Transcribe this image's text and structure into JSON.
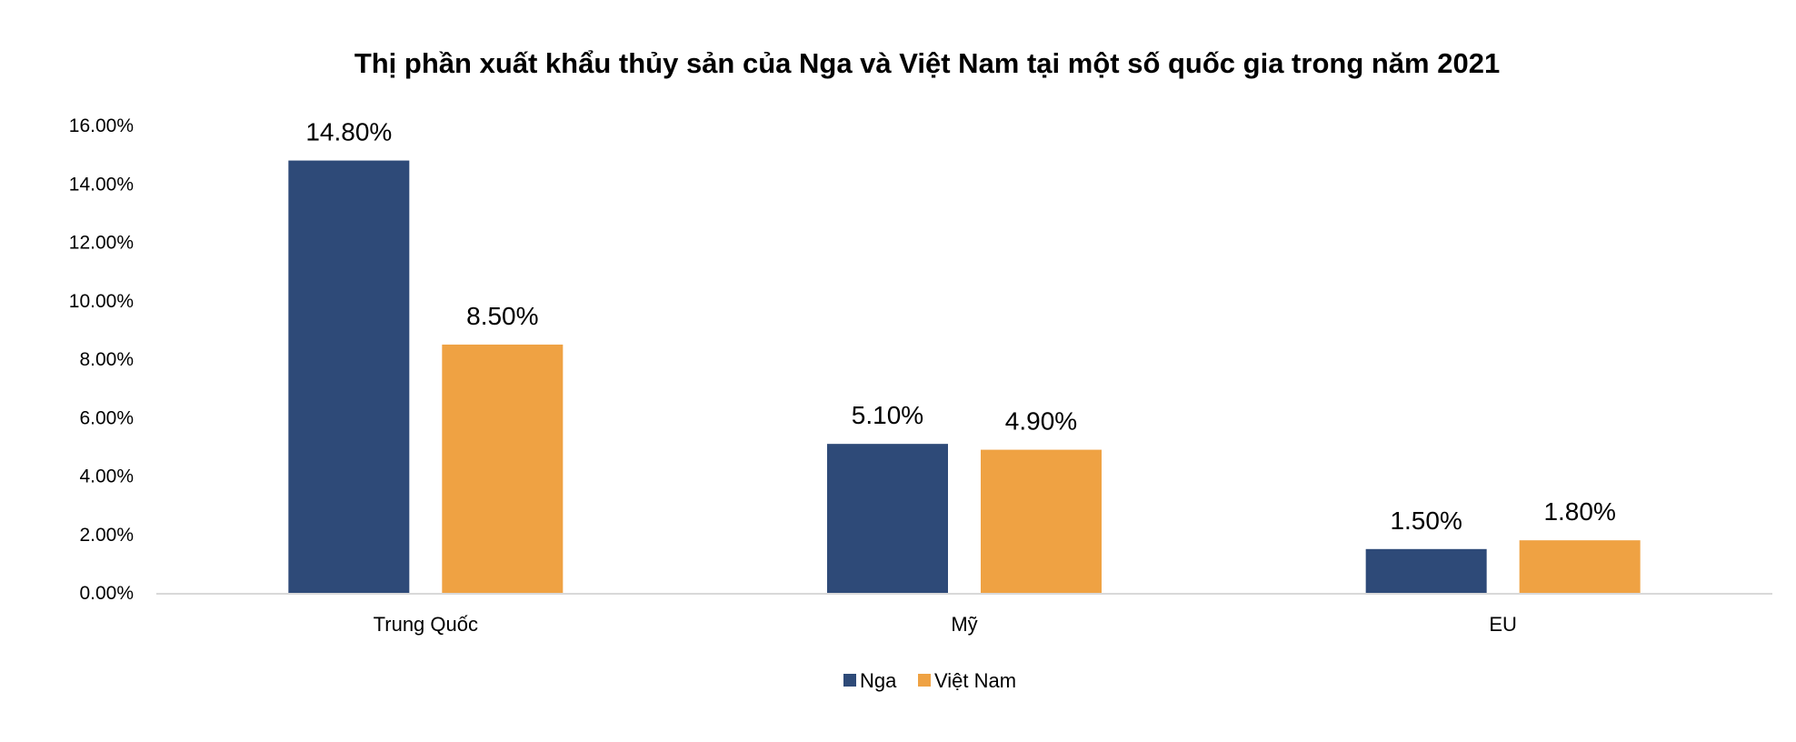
{
  "chart_data": {
    "type": "bar",
    "title": "Thị phần xuất khẩu thủy sản của Nga và Việt Nam tại một số quốc gia trong năm 2021",
    "xlabel": "",
    "ylabel": "",
    "categories": [
      "Trung Quốc",
      "Mỹ",
      "EU"
    ],
    "series": [
      {
        "name": "Nga",
        "color": "#2E4A78",
        "values": [
          14.8,
          5.1,
          1.5
        ],
        "labels": [
          "14.80%",
          "5.10%",
          "1.50%"
        ]
      },
      {
        "name": "Việt Nam",
        "color": "#EFA243",
        "values": [
          8.5,
          4.9,
          1.8
        ],
        "labels": [
          "8.50%",
          "4.90%",
          "1.80%"
        ]
      }
    ],
    "ylim": [
      0,
      16
    ],
    "yticks": [
      0,
      2,
      4,
      6,
      8,
      10,
      12,
      14,
      16
    ],
    "ytick_labels": [
      "0.00%",
      "2.00%",
      "4.00%",
      "6.00%",
      "8.00%",
      "10.00%",
      "12.00%",
      "14.00%",
      "16.00%"
    ],
    "grid": false,
    "legend_position": "bottom-center",
    "axis_color": "#D9D9D9"
  }
}
